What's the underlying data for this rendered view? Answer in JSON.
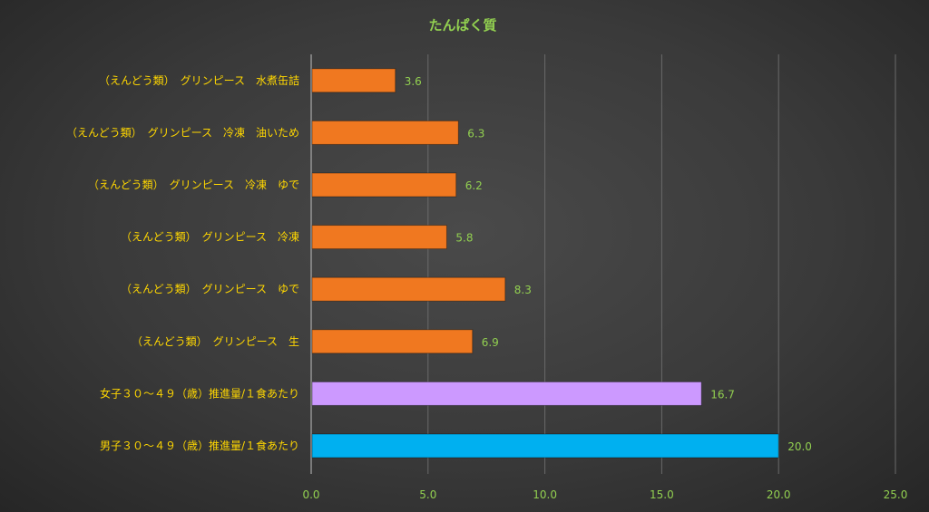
{
  "chart_data": {
    "type": "bar",
    "orientation": "horizontal",
    "title": "たんぱく質",
    "categories": [
      "（えんどう類）　グリンピース　水煮缶詰",
      "（えんどう類）　グリンピース　冷凍　油いため",
      "（えんどう類）　グリンピース　冷凍　ゆで",
      "（えんどう類）　グリンピース　冷凍",
      "（えんどう類）　グリンピース　ゆで",
      "（えんどう類）　グリンピース　生",
      "女子３０～４９（歳）推進量/１食あたり",
      "男子３０～４９（歳）推進量/１食あたり"
    ],
    "values": [
      3.6,
      6.3,
      6.2,
      5.8,
      8.3,
      6.9,
      16.7,
      20.0
    ],
    "value_labels": [
      "3.6",
      "6.3",
      "6.2",
      "5.8",
      "8.3",
      "6.9",
      "16.7",
      "20.0"
    ],
    "bar_colors": [
      "#F07820",
      "#F07820",
      "#F07820",
      "#F07820",
      "#F07820",
      "#F07820",
      "#CC99FF",
      "#00B0F0"
    ],
    "xlim": [
      0,
      25
    ],
    "xticks": [
      "0.0",
      "5.0",
      "10.0",
      "15.0",
      "20.0",
      "25.0"
    ],
    "grid": "vertical",
    "legend": "none"
  },
  "colors": {
    "title": "#92D050",
    "category_label": "#FFD700",
    "value_label": "#92D050",
    "tick_label": "#92D050",
    "grid": "#6a6a6a",
    "axis": "#bfbfbf"
  }
}
